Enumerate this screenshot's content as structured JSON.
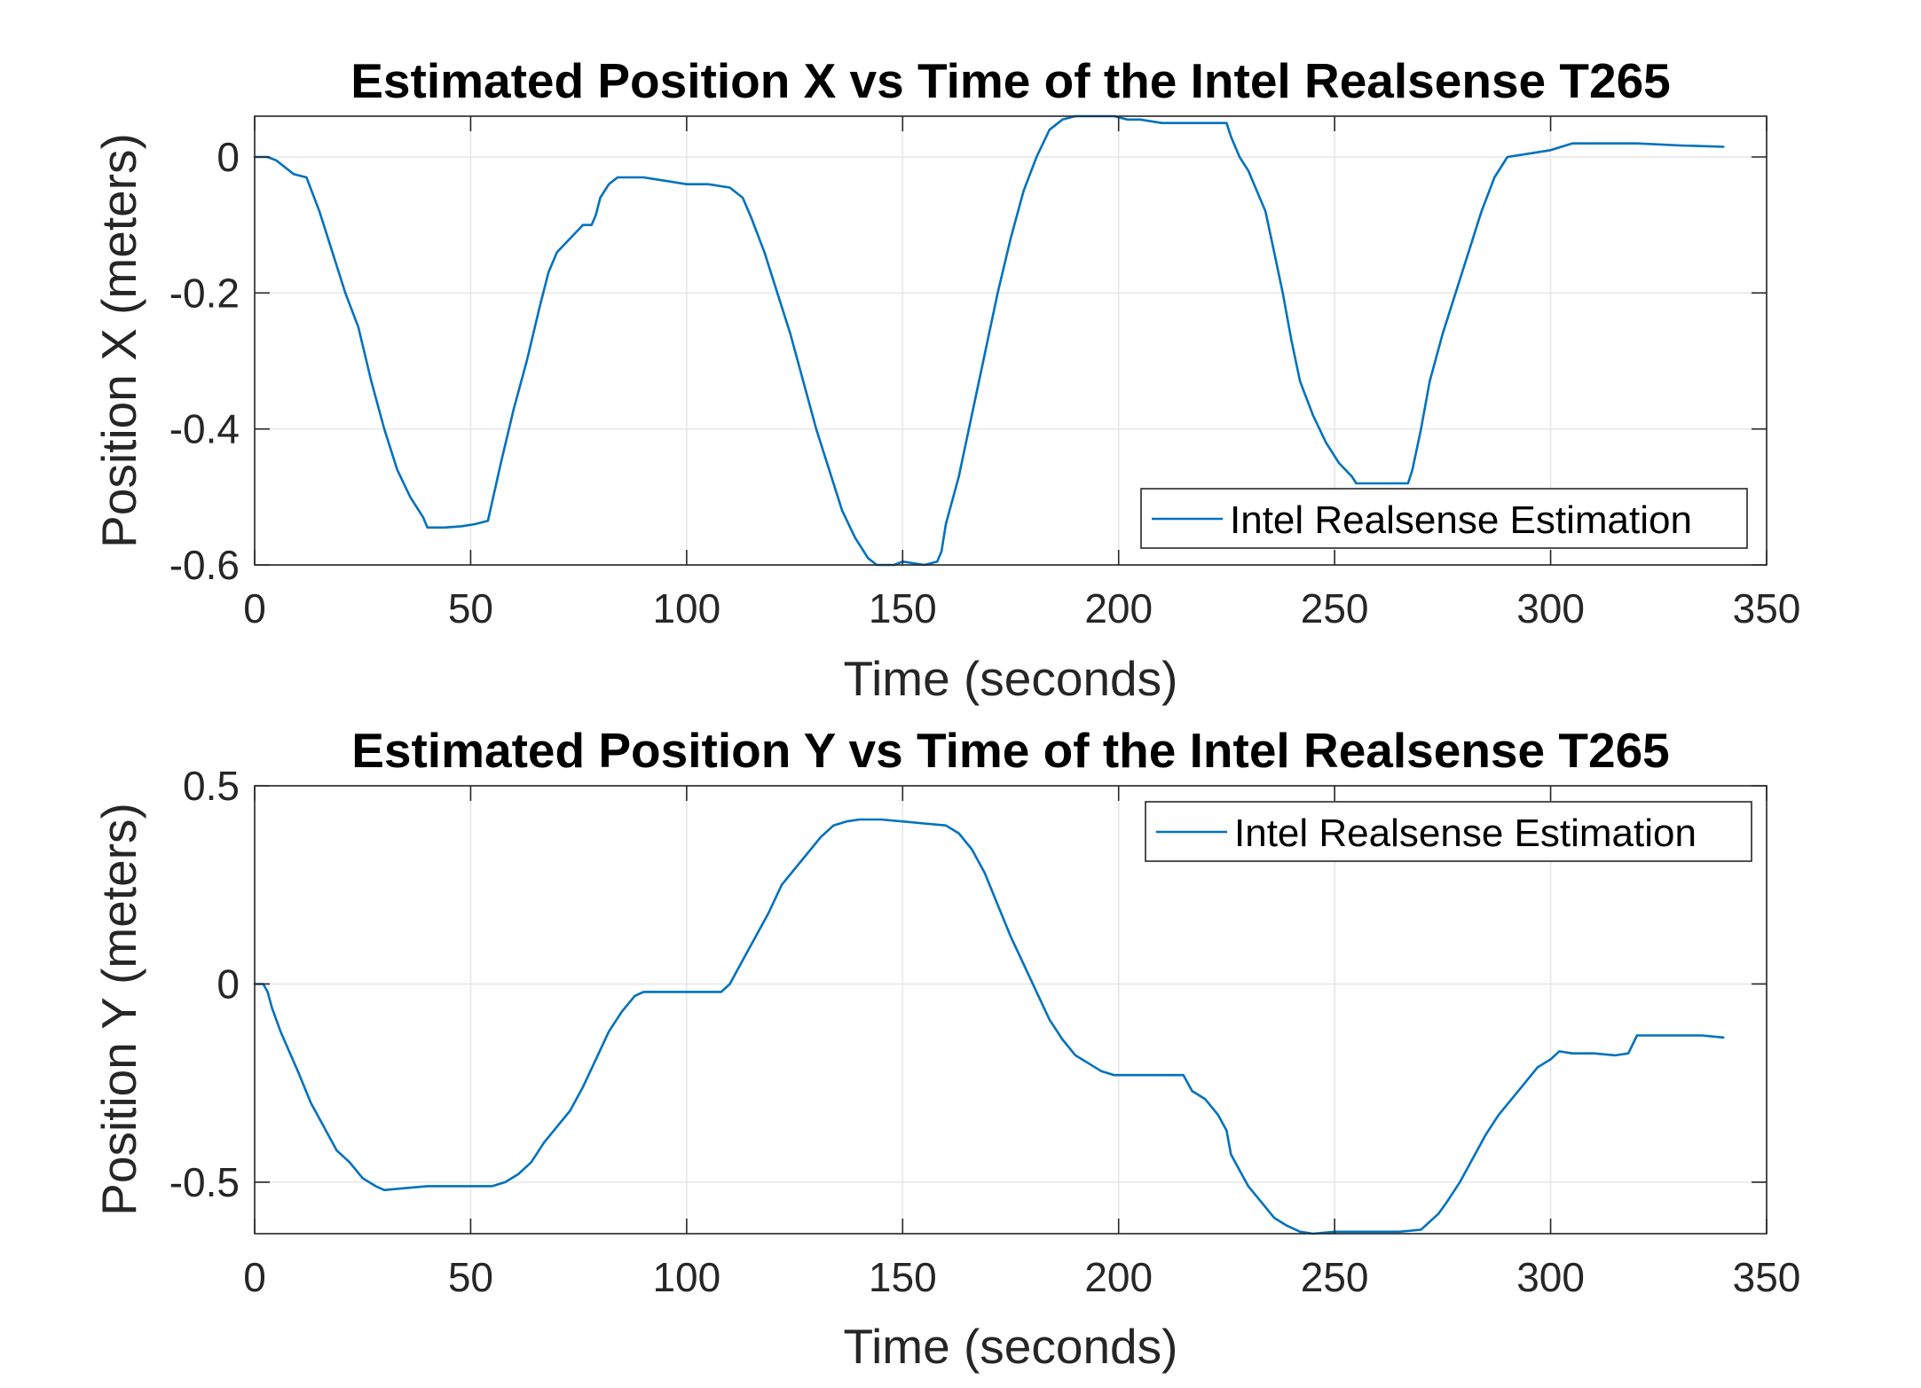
{
  "chart_data": [
    {
      "type": "line",
      "title": "Estimated Position X vs Time of the Intel Realsense T265",
      "xlabel": "Time (seconds)",
      "ylabel": "Position X (meters)",
      "xlim": [
        0,
        350
      ],
      "ylim": [
        -0.6,
        0.06
      ],
      "xticks": [
        0,
        50,
        100,
        150,
        200,
        250,
        300,
        350
      ],
      "xtick_labels": [
        "0",
        "50",
        "100",
        "150",
        "200",
        "250",
        "300",
        "350"
      ],
      "yticks": [
        0,
        -0.2,
        -0.4,
        -0.6
      ],
      "ytick_labels": [
        "0",
        "-0.2",
        "-0.4",
        "-0.6"
      ],
      "grid": true,
      "legend_position": "bottom-right",
      "series": [
        {
          "name": "Intel Realsense Estimation",
          "color": "#0072BD",
          "x": [
            0,
            3,
            5,
            7,
            9,
            12,
            15,
            18,
            21,
            24,
            27,
            30,
            33,
            36,
            39,
            40,
            44,
            48,
            51,
            54,
            57,
            60,
            63,
            66,
            68,
            70,
            73,
            76,
            78,
            79,
            80,
            82,
            84,
            86,
            88,
            90,
            95,
            100,
            105,
            110,
            113,
            115,
            118,
            121,
            124,
            127,
            130,
            133,
            136,
            139,
            142,
            144,
            146,
            148,
            150,
            155,
            158,
            159,
            160,
            163,
            166,
            169,
            172,
            175,
            178,
            181,
            184,
            187,
            190,
            193,
            196,
            199,
            202,
            205,
            210,
            215,
            220,
            225,
            226,
            228,
            230,
            232,
            234,
            236,
            238,
            240,
            242,
            245,
            248,
            251,
            254,
            255,
            258,
            261,
            264,
            267,
            268,
            270,
            272,
            275,
            278,
            281,
            284,
            287,
            290,
            295,
            300,
            305,
            310,
            320,
            330,
            340
          ],
          "y": [
            0,
            0,
            -0.005,
            -0.015,
            -0.025,
            -0.03,
            -0.08,
            -0.14,
            -0.2,
            -0.25,
            -0.33,
            -0.4,
            -0.46,
            -0.5,
            -0.53,
            -0.545,
            -0.545,
            -0.543,
            -0.54,
            -0.535,
            -0.45,
            -0.37,
            -0.3,
            -0.22,
            -0.17,
            -0.14,
            -0.12,
            -0.1,
            -0.1,
            -0.085,
            -0.06,
            -0.04,
            -0.03,
            -0.03,
            -0.03,
            -0.03,
            -0.035,
            -0.04,
            -0.04,
            -0.045,
            -0.06,
            -0.09,
            -0.14,
            -0.2,
            -0.26,
            -0.33,
            -0.4,
            -0.46,
            -0.52,
            -0.56,
            -0.59,
            -0.6,
            -0.6,
            -0.6,
            -0.595,
            -0.6,
            -0.595,
            -0.58,
            -0.54,
            -0.47,
            -0.38,
            -0.29,
            -0.2,
            -0.12,
            -0.05,
            0.0,
            0.04,
            0.055,
            0.06,
            0.06,
            0.06,
            0.06,
            0.055,
            0.055,
            0.05,
            0.05,
            0.05,
            0.05,
            0.03,
            0.0,
            -0.02,
            -0.05,
            -0.08,
            -0.14,
            -0.2,
            -0.27,
            -0.33,
            -0.38,
            -0.42,
            -0.45,
            -0.47,
            -0.48,
            -0.48,
            -0.48,
            -0.48,
            -0.48,
            -0.46,
            -0.4,
            -0.33,
            -0.26,
            -0.2,
            -0.14,
            -0.08,
            -0.03,
            0.0,
            0.005,
            0.01,
            0.02,
            0.02,
            0.02,
            0.017,
            0.015
          ],
          "legend": "Intel Realsense Estimation"
        }
      ]
    },
    {
      "type": "line",
      "title": "Estimated Position Y vs Time of the Intel Realsense T265",
      "xlabel": "Time (seconds)",
      "ylabel": "Position Y (meters)",
      "xlim": [
        0,
        350
      ],
      "ylim": [
        -0.63,
        0.5
      ],
      "xticks": [
        0,
        50,
        100,
        150,
        200,
        250,
        300,
        350
      ],
      "xtick_labels": [
        "0",
        "50",
        "100",
        "150",
        "200",
        "250",
        "300",
        "350"
      ],
      "yticks": [
        0.5,
        0,
        -0.5
      ],
      "ytick_labels": [
        "0.5",
        "0",
        "-0.5"
      ],
      "grid": true,
      "legend_position": "top-right",
      "series": [
        {
          "name": "Intel Realsense Estimation",
          "color": "#0072BD",
          "x": [
            0,
            2,
            3,
            4,
            6,
            8,
            10,
            13,
            16,
            19,
            22,
            25,
            28,
            30,
            35,
            40,
            45,
            50,
            55,
            58,
            61,
            64,
            67,
            70,
            73,
            76,
            79,
            82,
            85,
            88,
            90,
            95,
            100,
            105,
            108,
            110,
            113,
            116,
            119,
            122,
            125,
            128,
            131,
            134,
            137,
            140,
            145,
            150,
            155,
            160,
            163,
            166,
            169,
            172,
            175,
            178,
            181,
            184,
            187,
            190,
            193,
            196,
            199,
            202,
            205,
            210,
            215,
            217,
            220,
            223,
            225,
            226,
            228,
            230,
            233,
            236,
            239,
            242,
            245,
            250,
            255,
            260,
            265,
            270,
            272,
            274,
            276,
            279,
            282,
            285,
            288,
            291,
            294,
            297,
            300,
            302,
            305,
            310,
            315,
            318,
            320,
            325,
            330,
            335,
            340
          ],
          "y": [
            0,
            0,
            -0.02,
            -0.06,
            -0.12,
            -0.17,
            -0.22,
            -0.3,
            -0.36,
            -0.42,
            -0.45,
            -0.49,
            -0.51,
            -0.52,
            -0.515,
            -0.51,
            -0.51,
            -0.51,
            -0.51,
            -0.5,
            -0.48,
            -0.45,
            -0.4,
            -0.36,
            -0.32,
            -0.26,
            -0.19,
            -0.12,
            -0.07,
            -0.03,
            -0.02,
            -0.02,
            -0.02,
            -0.02,
            -0.02,
            0.0,
            0.06,
            0.12,
            0.18,
            0.25,
            0.29,
            0.33,
            0.37,
            0.4,
            0.41,
            0.415,
            0.415,
            0.41,
            0.405,
            0.4,
            0.38,
            0.34,
            0.28,
            0.2,
            0.12,
            0.05,
            -0.02,
            -0.09,
            -0.14,
            -0.18,
            -0.2,
            -0.22,
            -0.23,
            -0.23,
            -0.23,
            -0.23,
            -0.23,
            -0.27,
            -0.29,
            -0.33,
            -0.37,
            -0.43,
            -0.47,
            -0.51,
            -0.55,
            -0.59,
            -0.61,
            -0.625,
            -0.63,
            -0.625,
            -0.625,
            -0.625,
            -0.625,
            -0.62,
            -0.6,
            -0.58,
            -0.55,
            -0.5,
            -0.44,
            -0.38,
            -0.33,
            -0.29,
            -0.25,
            -0.21,
            -0.19,
            -0.17,
            -0.175,
            -0.175,
            -0.18,
            -0.175,
            -0.13,
            -0.13,
            -0.13,
            -0.13,
            -0.135
          ],
          "legend": "Intel Realsense Estimation"
        }
      ]
    }
  ]
}
